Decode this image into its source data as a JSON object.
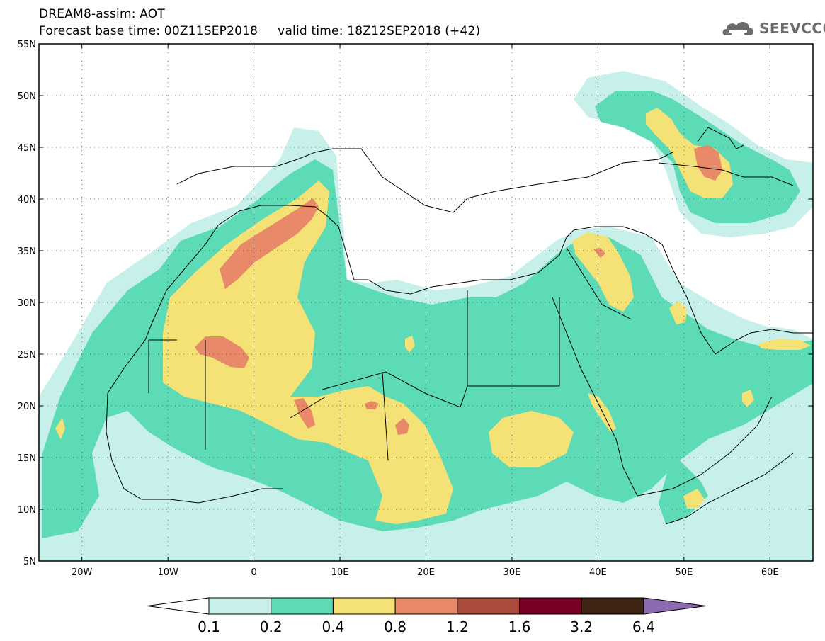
{
  "header": {
    "title_line1": "DREAM8-assim: AOT",
    "title_line2": "Forecast base time: 00Z11SEP2018     valid time: 18Z12SEP2018 (+42)"
  },
  "logo": {
    "text": "SEEVCCC",
    "icon": "cloud-logo-icon",
    "color": "#6b6b6b"
  },
  "map": {
    "lat_range": [
      5,
      55
    ],
    "lon_range": [
      -25,
      65
    ],
    "lat_ticks": [
      "5N",
      "10N",
      "15N",
      "20N",
      "25N",
      "30N",
      "35N",
      "40N",
      "45N",
      "50N",
      "55N"
    ],
    "lon_ticks": [
      "20W",
      "10W",
      "0",
      "10E",
      "20E",
      "30E",
      "40E",
      "50E",
      "60E"
    ],
    "grid": "dotted"
  },
  "colorbar": {
    "labels": [
      "0.1",
      "0.2",
      "0.4",
      "0.8",
      "1.2",
      "1.6",
      "3.2",
      "6.4"
    ],
    "colors": [
      "#c8f0ea",
      "#5ddbb6",
      "#f5e276",
      "#e8896a",
      "#aa4b3c",
      "#7a0025",
      "#3e2415",
      "#8d6bb0"
    ]
  }
}
